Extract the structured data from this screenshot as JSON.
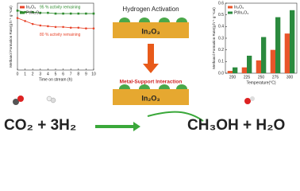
{
  "chart_data": [
    {
      "type": "line",
      "y_label": "Methanol Formation Rate(g h⁻¹ g⁻¹cat)",
      "x_label": "Time on stream (h)",
      "x": [
        0,
        1,
        2,
        3,
        4,
        5,
        6,
        7,
        8,
        9,
        10
      ],
      "xlim": [
        0,
        10
      ],
      "xticks": [
        0,
        1,
        2,
        3,
        4,
        5,
        6,
        7,
        8,
        9,
        10
      ],
      "ylim": [
        0,
        0.45
      ],
      "legend": "upper left",
      "series": [
        {
          "name": "In₂O₃",
          "color": "#e8442a",
          "values": [
            0.35,
            0.33,
            0.31,
            0.3,
            0.295,
            0.29,
            0.29,
            0.285,
            0.285,
            0.28,
            0.28
          ]
        },
        {
          "name": "Pt/In₂O₃",
          "color": "#2e8b2e",
          "values": [
            0.4,
            0.39,
            0.39,
            0.385,
            0.385,
            0.38,
            0.38,
            0.38,
            0.38,
            0.38,
            0.38
          ]
        }
      ],
      "annotations": [
        "95 % activity remaining",
        "80 % activity remaining"
      ]
    },
    {
      "type": "bar",
      "y_label": "Methanol Formation Rate(g h⁻¹ g⁻¹cat)",
      "x_label": "Temperature(°C)",
      "categories": [
        "200",
        "225",
        "250",
        "275",
        "300"
      ],
      "ylim": [
        0,
        0.6
      ],
      "yticks": [
        {
          "value": 0,
          "label": "0.0"
        },
        0.1,
        0.2,
        0.3,
        0.4,
        0.5,
        0.6
      ],
      "legend": "upper left",
      "series": [
        {
          "name": "In₂O₃",
          "color": "#e8552a",
          "values": [
            0.02,
            0.05,
            0.11,
            0.2,
            0.34
          ]
        },
        {
          "name": "Pt/In₂O₃",
          "color": "#2b8a3e",
          "values": [
            0.05,
            0.15,
            0.31,
            0.48,
            0.54
          ]
        }
      ]
    }
  ],
  "diagram": {
    "top_label": "Hydrogen Activation",
    "top_support": "In₂O₃",
    "bottom_label": "Metal-Support Interaction",
    "bottom_support": "In₂O₃",
    "reactants": "CO₂ + 3H₂",
    "products": "CH₃OH + H₂O"
  }
}
